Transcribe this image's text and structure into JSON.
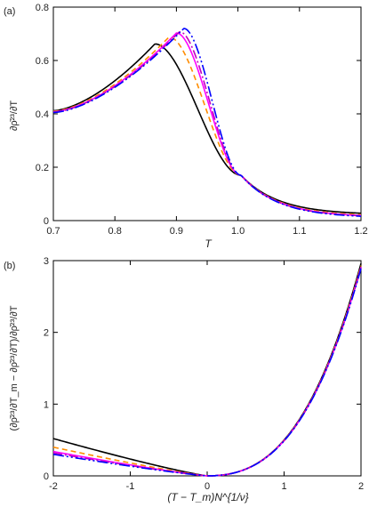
{
  "panels": [
    {
      "label": "(a)",
      "xlabel": "T",
      "ylabel": "∂ρ̄²³/∂T"
    },
    {
      "label": "(b)",
      "xlabel": "(T − T_m)N^{1/ν}",
      "ylabel": "(∂ρ̄²³/∂T_m − ∂ρ̄²³/∂T)/∂ρ̄²³/∂T"
    }
  ],
  "styles": {
    "colors": [
      "#000000",
      "#ff8c00",
      "#ff00ff",
      "#c000c0",
      "#0000ff"
    ],
    "dashes": [
      "",
      "6,4",
      "",
      "10,3,2,3",
      "12,3,2,3,2,3"
    ]
  },
  "chart_data": [
    {
      "type": "line",
      "xlim": [
        0.7,
        1.2
      ],
      "ylim": [
        0,
        0.8
      ],
      "xticks": [
        "0.7",
        "0.8",
        "0.9",
        "1.0",
        "1.1",
        "1.2"
      ],
      "yticks": [
        "0",
        "0.2",
        "0.4",
        "0.6",
        "0.8"
      ],
      "series": [
        {
          "peak_x": 0.865,
          "peak_y": 0.662,
          "y_start": 0.412,
          "cross_x": 1.005,
          "cross_y": 0.17,
          "y_end": 0.022
        },
        {
          "peak_x": 0.888,
          "peak_y": 0.688,
          "y_start": 0.41,
          "cross_x": 1.005,
          "cross_y": 0.17,
          "y_end": 0.016
        },
        {
          "peak_x": 0.9,
          "peak_y": 0.703,
          "y_start": 0.408,
          "cross_x": 1.005,
          "cross_y": 0.17,
          "y_end": 0.013
        },
        {
          "peak_x": 0.905,
          "peak_y": 0.708,
          "y_start": 0.407,
          "cross_x": 1.005,
          "cross_y": 0.17,
          "y_end": 0.012
        },
        {
          "peak_x": 0.912,
          "peak_y": 0.72,
          "y_start": 0.405,
          "cross_x": 1.005,
          "cross_y": 0.17,
          "y_end": 0.01
        }
      ]
    },
    {
      "type": "line",
      "xlim": [
        -2,
        2
      ],
      "ylim": [
        0,
        3
      ],
      "xticks": [
        "-2",
        "-1",
        "0",
        "1",
        "2"
      ],
      "yticks": [
        "0",
        "1",
        "2",
        "3"
      ],
      "series": [
        {
          "y_left": 0.52,
          "y_right": 2.96
        },
        {
          "y_left": 0.4,
          "y_right": 2.93
        },
        {
          "y_left": 0.34,
          "y_right": 2.91
        },
        {
          "y_left": 0.32,
          "y_right": 2.9
        },
        {
          "y_left": 0.3,
          "y_right": 2.89
        }
      ]
    }
  ]
}
